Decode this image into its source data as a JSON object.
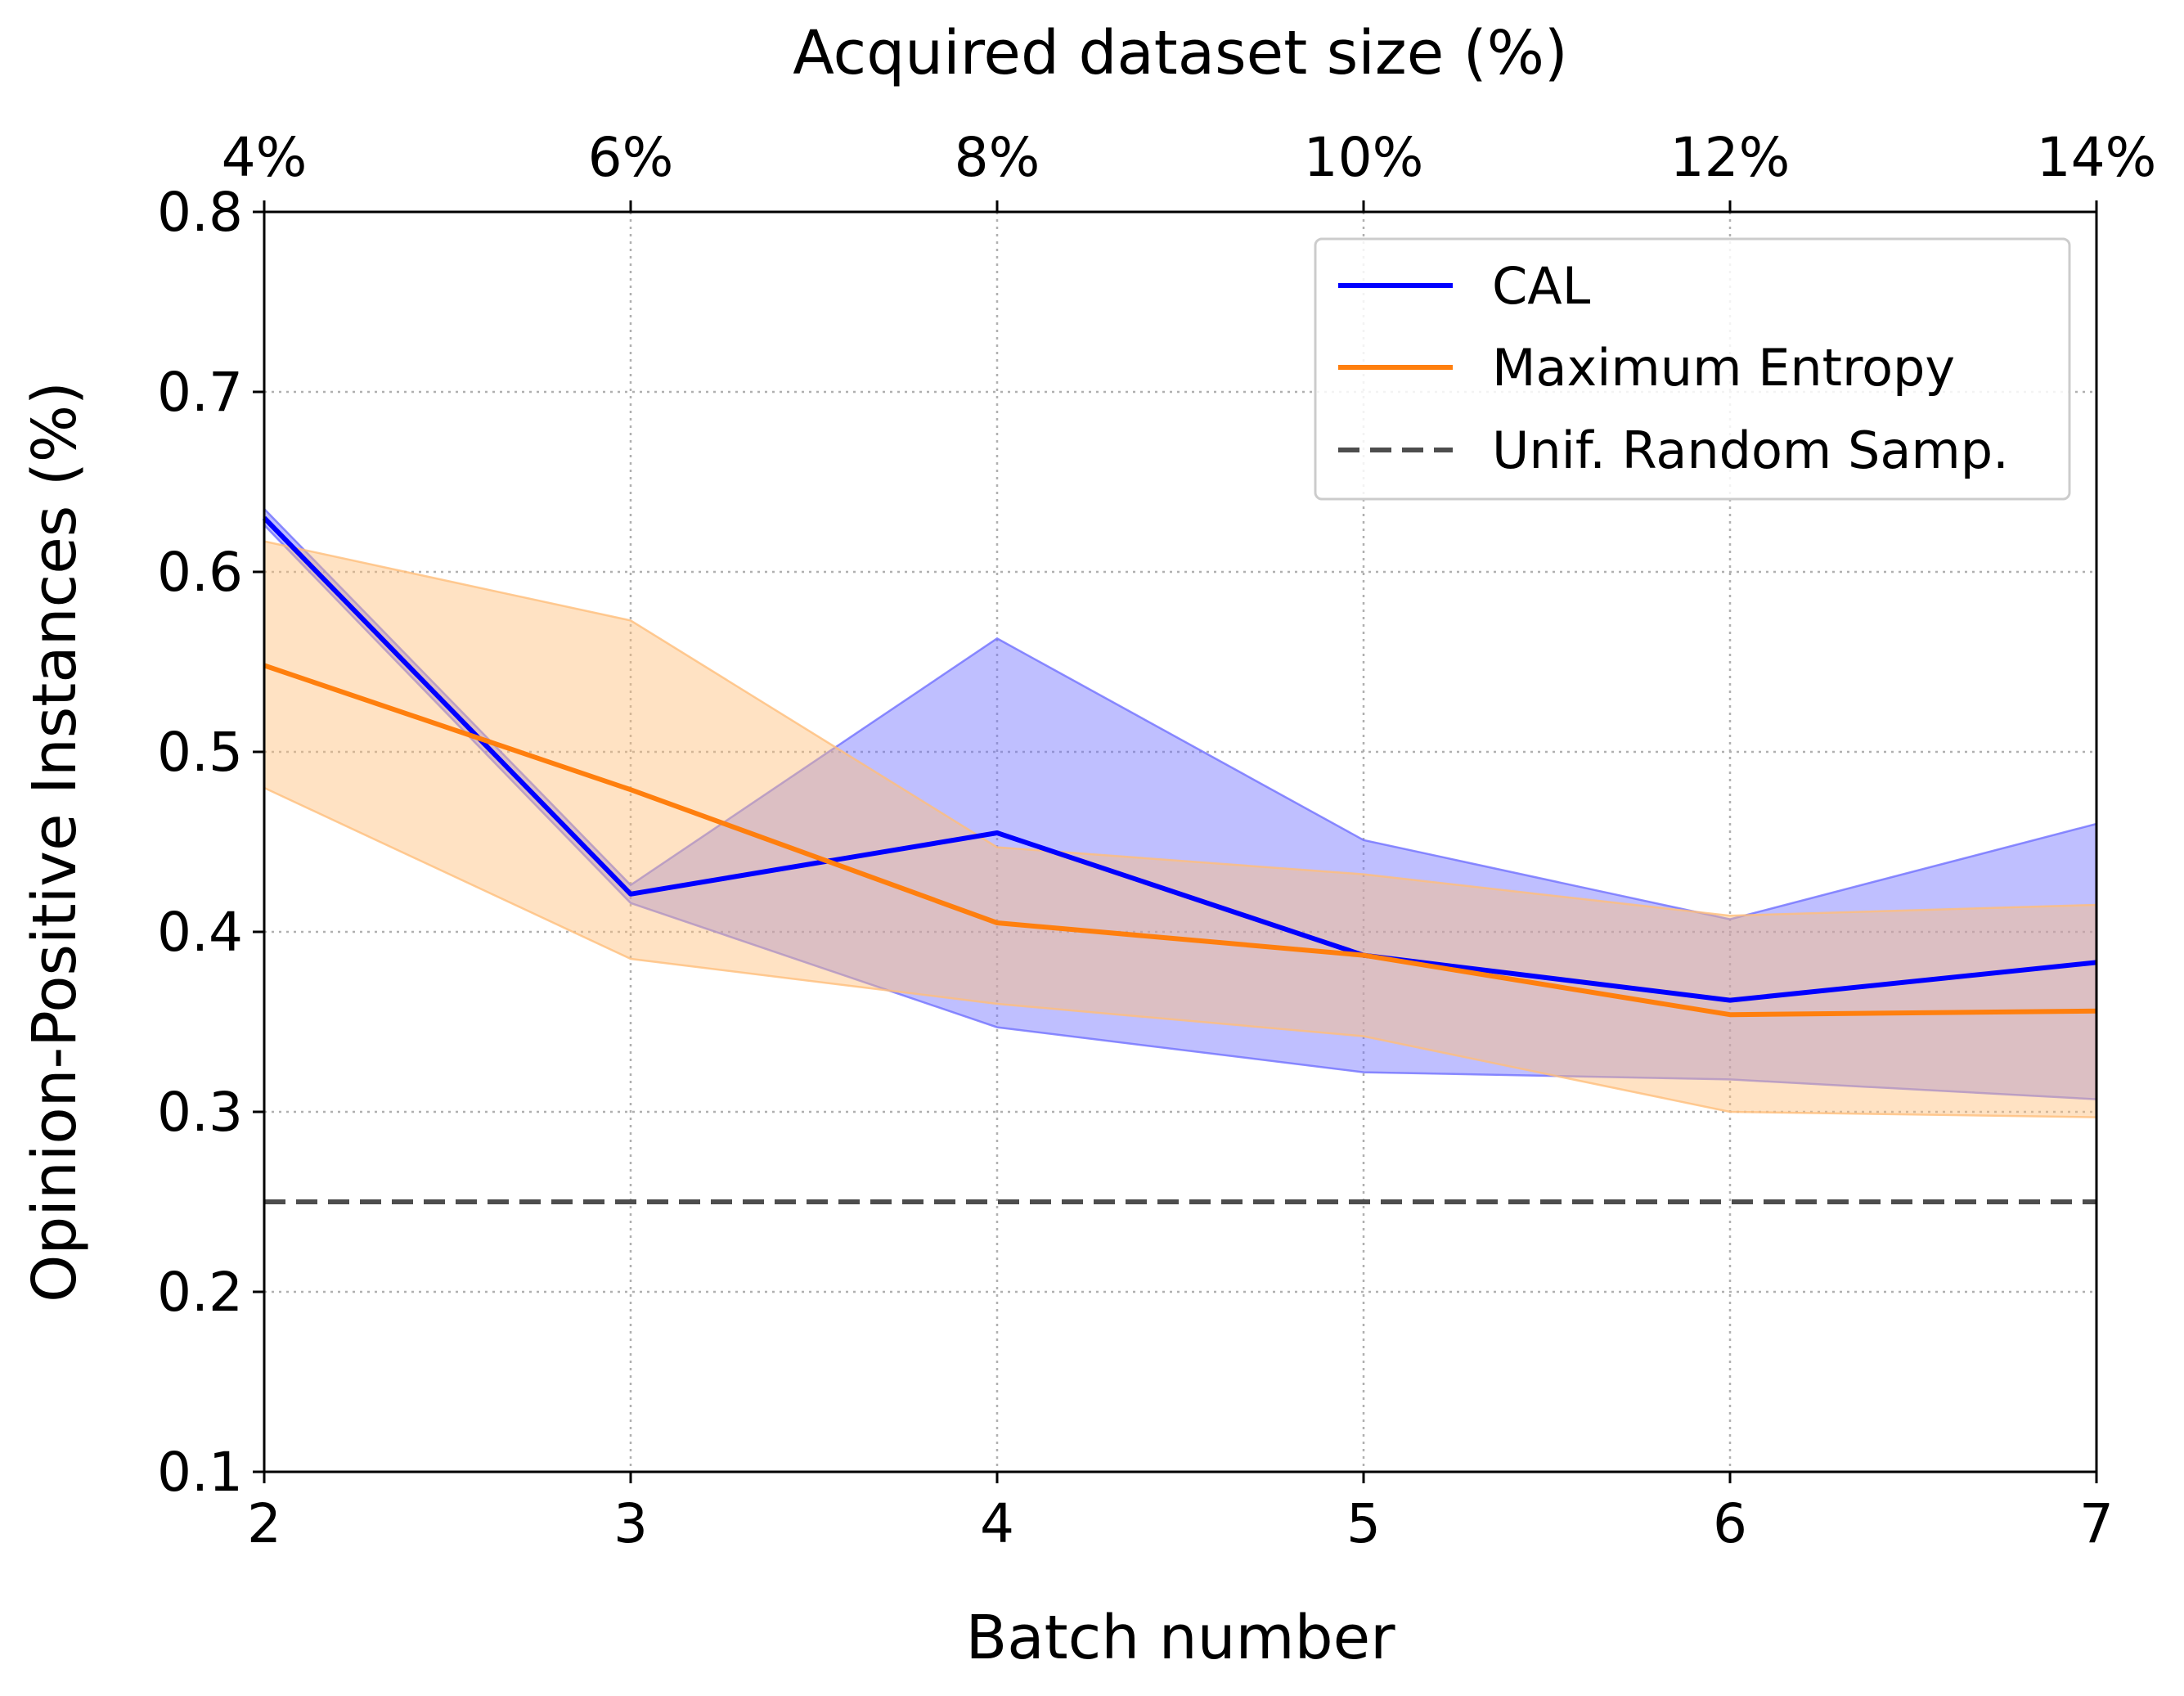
{
  "chart_data": {
    "type": "line",
    "xlabel": "Batch number",
    "x2label": "Acquired dataset size (%)",
    "ylabel": "Opinion-Positive Instances (%)",
    "x": [
      2,
      3,
      4,
      5,
      6,
      7
    ],
    "xlim": [
      2,
      7
    ],
    "ylim": [
      0.1,
      0.8
    ],
    "x_ticks": [
      "2",
      "3",
      "4",
      "5",
      "6",
      "7"
    ],
    "x2_ticks": [
      "4%",
      "6%",
      "8%",
      "10%",
      "12%",
      "14%"
    ],
    "y_ticks": [
      "0.1",
      "0.2",
      "0.3",
      "0.4",
      "0.5",
      "0.6",
      "0.7",
      "0.8"
    ],
    "grid": true,
    "legend_position": "top-right",
    "series": [
      {
        "name": "CAL",
        "color": "#0000ff",
        "fill_color": "#7070ff",
        "values": [
          0.63,
          0.421,
          0.455,
          0.387,
          0.362,
          0.383
        ],
        "lower": [
          0.626,
          0.416,
          0.347,
          0.322,
          0.318,
          0.307
        ],
        "upper": [
          0.635,
          0.426,
          0.563,
          0.451,
          0.407,
          0.46
        ]
      },
      {
        "name": "Maximum Entropy",
        "color": "#ff7f0e",
        "fill_color": "#ffbe7a",
        "values": [
          0.548,
          0.479,
          0.405,
          0.387,
          0.354,
          0.356
        ],
        "lower": [
          0.48,
          0.385,
          0.36,
          0.342,
          0.3,
          0.297
        ],
        "upper": [
          0.617,
          0.573,
          0.447,
          0.432,
          0.409,
          0.415
        ]
      },
      {
        "name": "Unif. Random Samp.",
        "color": "#4d4d4d",
        "style": "dashed",
        "values": [
          0.25,
          0.25,
          0.25,
          0.25,
          0.25,
          0.25
        ]
      }
    ]
  }
}
